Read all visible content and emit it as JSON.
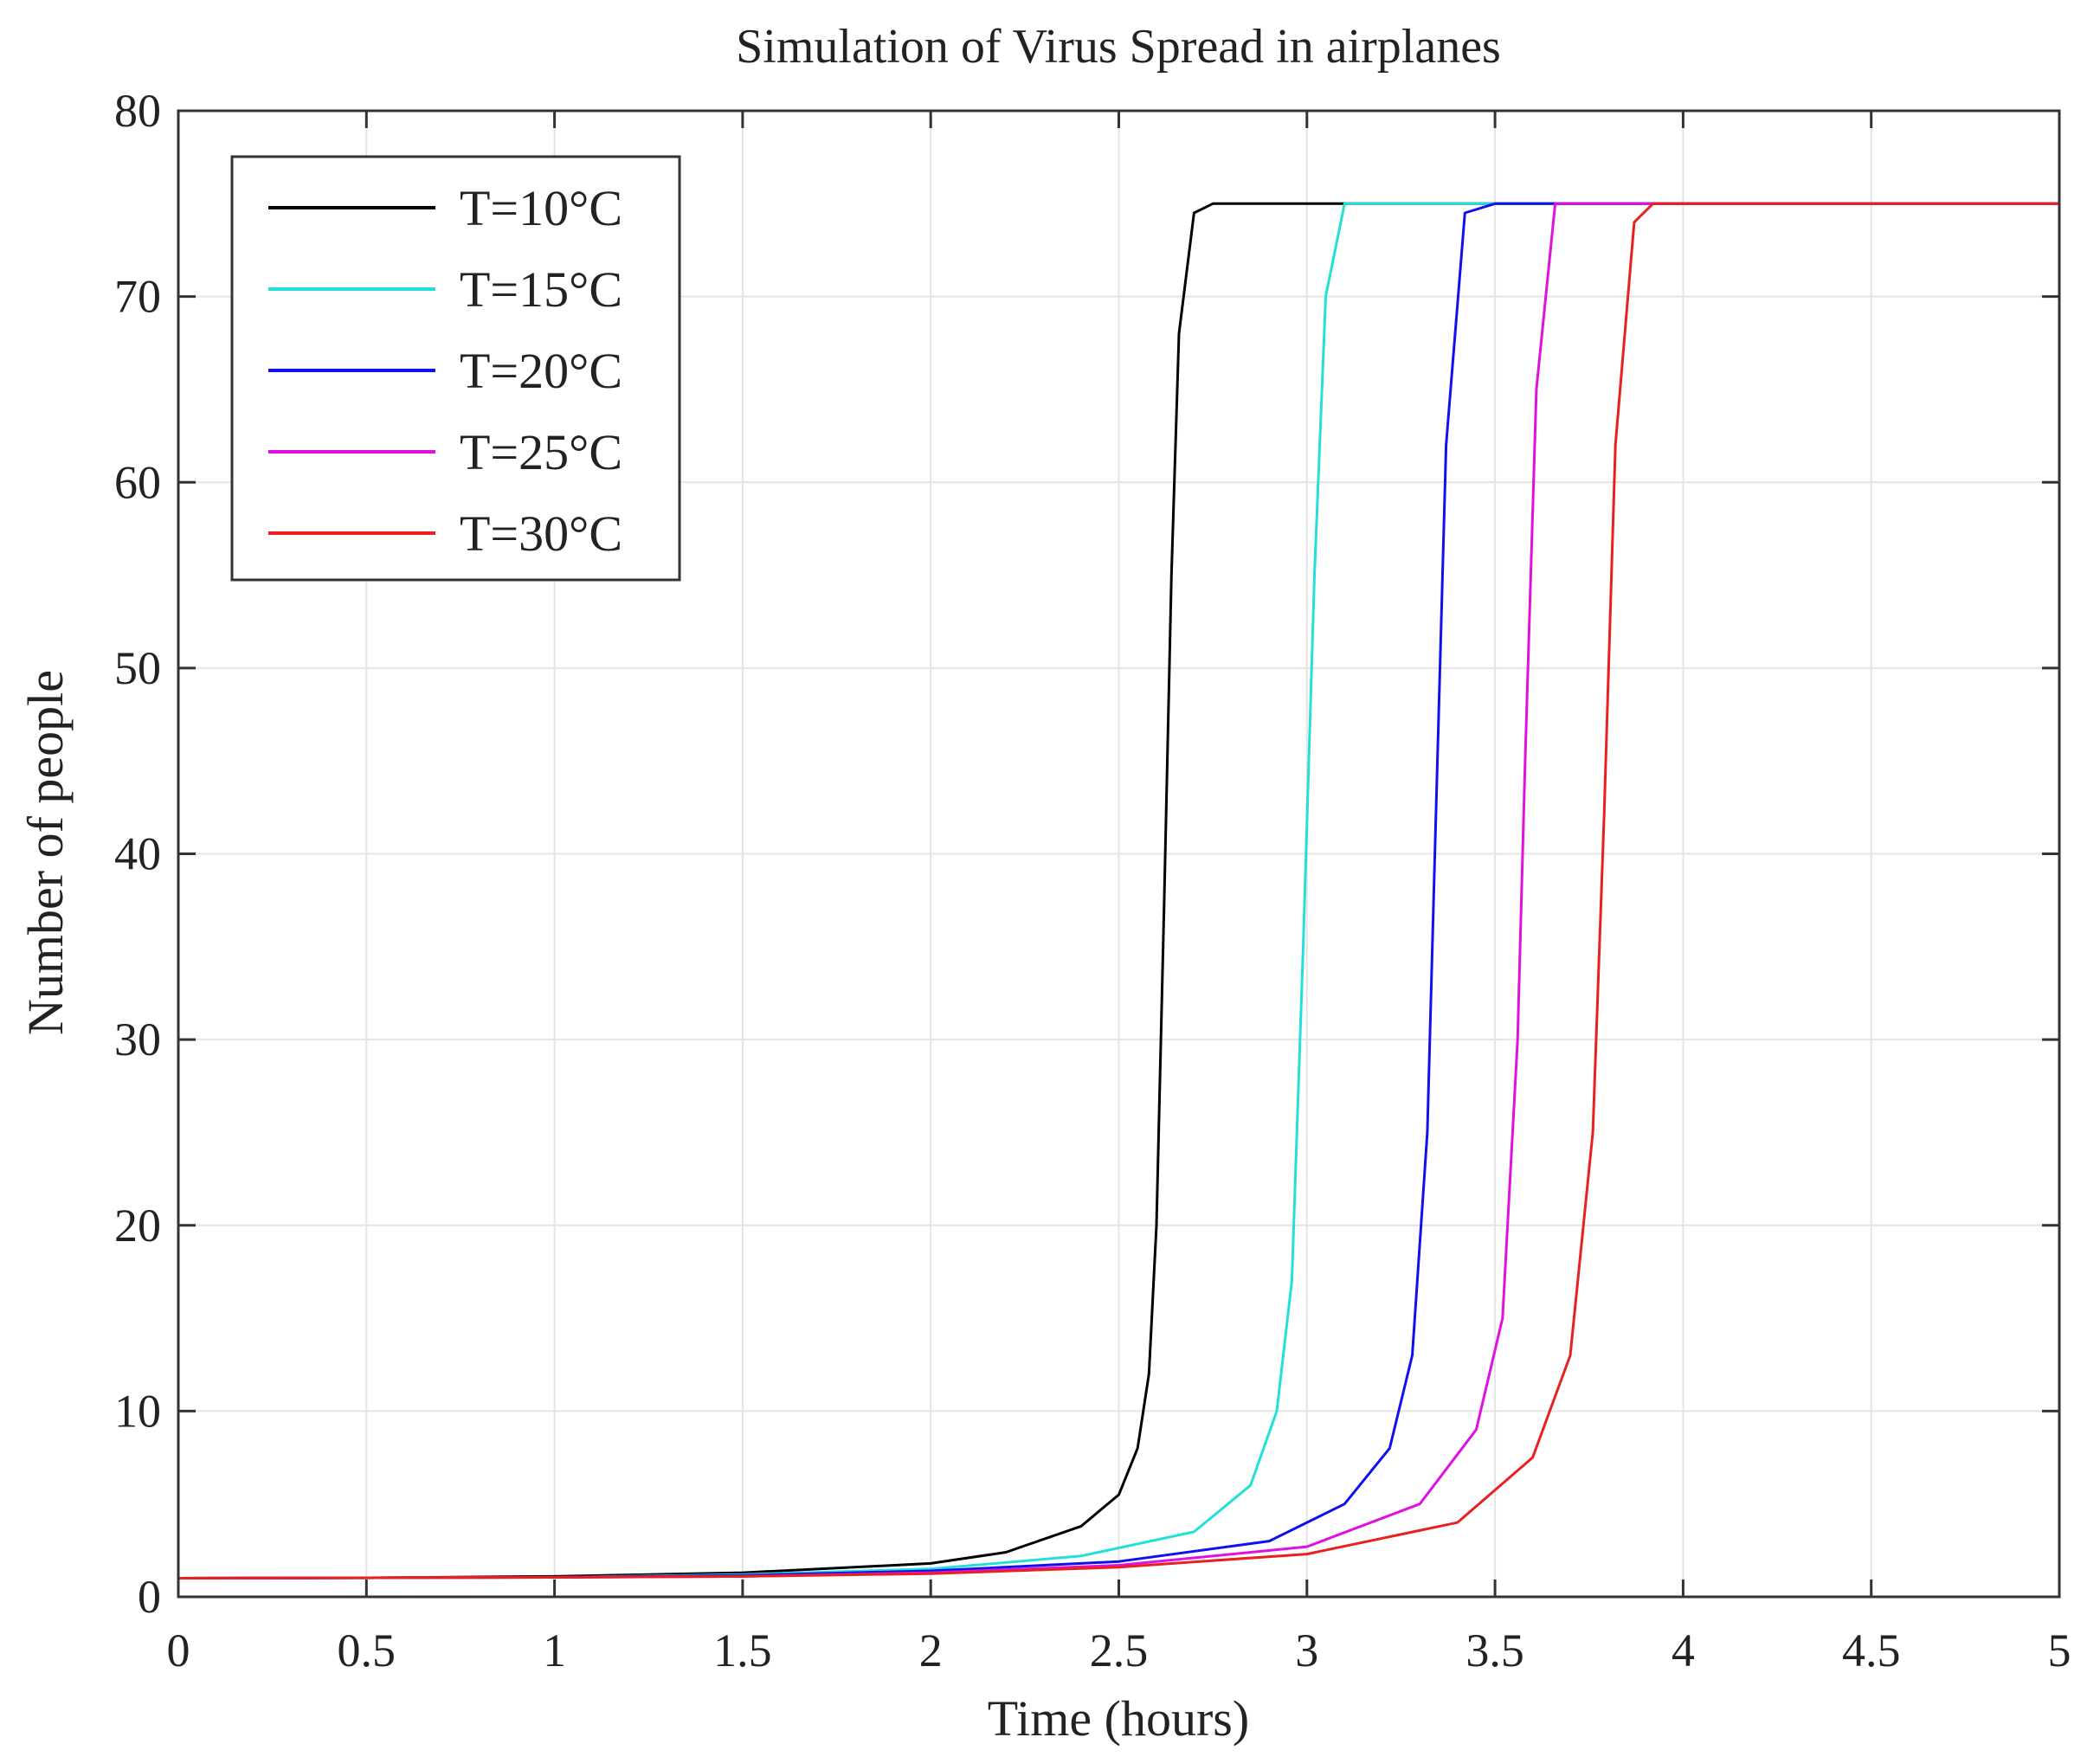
{
  "chart_data": {
    "type": "line",
    "title": "Simulation of Virus Spread in airplanes",
    "xlabel": "Time (hours)",
    "ylabel": "Number of people",
    "xlim": [
      0,
      5
    ],
    "ylim": [
      0,
      80
    ],
    "xticks": [
      0,
      0.5,
      1,
      1.5,
      2,
      2.5,
      3,
      3.5,
      4,
      4.5,
      5
    ],
    "xtick_labels": [
      "0",
      "0.5",
      "1",
      "1.5",
      "2",
      "2.5",
      "3",
      "3.5",
      "4",
      "4.5",
      "5"
    ],
    "yticks": [
      0,
      10,
      20,
      30,
      40,
      50,
      60,
      70,
      80
    ],
    "ytick_labels": [
      "0",
      "10",
      "20",
      "30",
      "40",
      "50",
      "60",
      "70",
      "80"
    ],
    "grid": true,
    "legend_position": "top-left",
    "series": [
      {
        "name": "T=10°C",
        "color": "#000000",
        "x": [
          0,
          0.5,
          1,
          1.5,
          2,
          2.2,
          2.4,
          2.5,
          2.55,
          2.58,
          2.6,
          2.62,
          2.64,
          2.66,
          2.7,
          2.75,
          5
        ],
        "y": [
          1,
          1.02,
          1.1,
          1.3,
          1.8,
          2.4,
          3.8,
          5.5,
          8,
          12,
          20,
          37,
          55,
          68,
          74.5,
          75,
          75
        ]
      },
      {
        "name": "T=15°C",
        "color": "#22e0d8",
        "x": [
          0,
          1,
          1.5,
          2,
          2.4,
          2.7,
          2.85,
          2.92,
          2.96,
          2.99,
          3.02,
          3.05,
          3.1,
          5
        ],
        "y": [
          1,
          1.05,
          1.2,
          1.5,
          2.2,
          3.5,
          6,
          10,
          17,
          35,
          55,
          70,
          75,
          75
        ]
      },
      {
        "name": "T=20°C",
        "color": "#1010ee",
        "x": [
          0,
          1,
          1.5,
          2,
          2.5,
          2.9,
          3.1,
          3.22,
          3.28,
          3.32,
          3.34,
          3.37,
          3.42,
          3.5,
          5
        ],
        "y": [
          1,
          1.05,
          1.15,
          1.4,
          1.9,
          3,
          5,
          8,
          13,
          25,
          40,
          62,
          74.5,
          75,
          75
        ]
      },
      {
        "name": "T=25°C",
        "color": "#e010e0",
        "x": [
          0,
          1,
          1.5,
          2,
          2.5,
          3,
          3.3,
          3.45,
          3.52,
          3.56,
          3.58,
          3.61,
          3.66,
          5
        ],
        "y": [
          1,
          1.05,
          1.1,
          1.3,
          1.7,
          2.7,
          5,
          9,
          15,
          30,
          45,
          65,
          75,
          75
        ]
      },
      {
        "name": "T=30°C",
        "color": "#e82020",
        "x": [
          0,
          1,
          1.5,
          2,
          2.5,
          3,
          3.4,
          3.6,
          3.7,
          3.76,
          3.79,
          3.82,
          3.87,
          3.92,
          5
        ],
        "y": [
          1,
          1.05,
          1.1,
          1.25,
          1.6,
          2.3,
          4,
          7.5,
          13,
          25,
          42,
          62,
          74,
          75,
          75
        ]
      }
    ]
  }
}
